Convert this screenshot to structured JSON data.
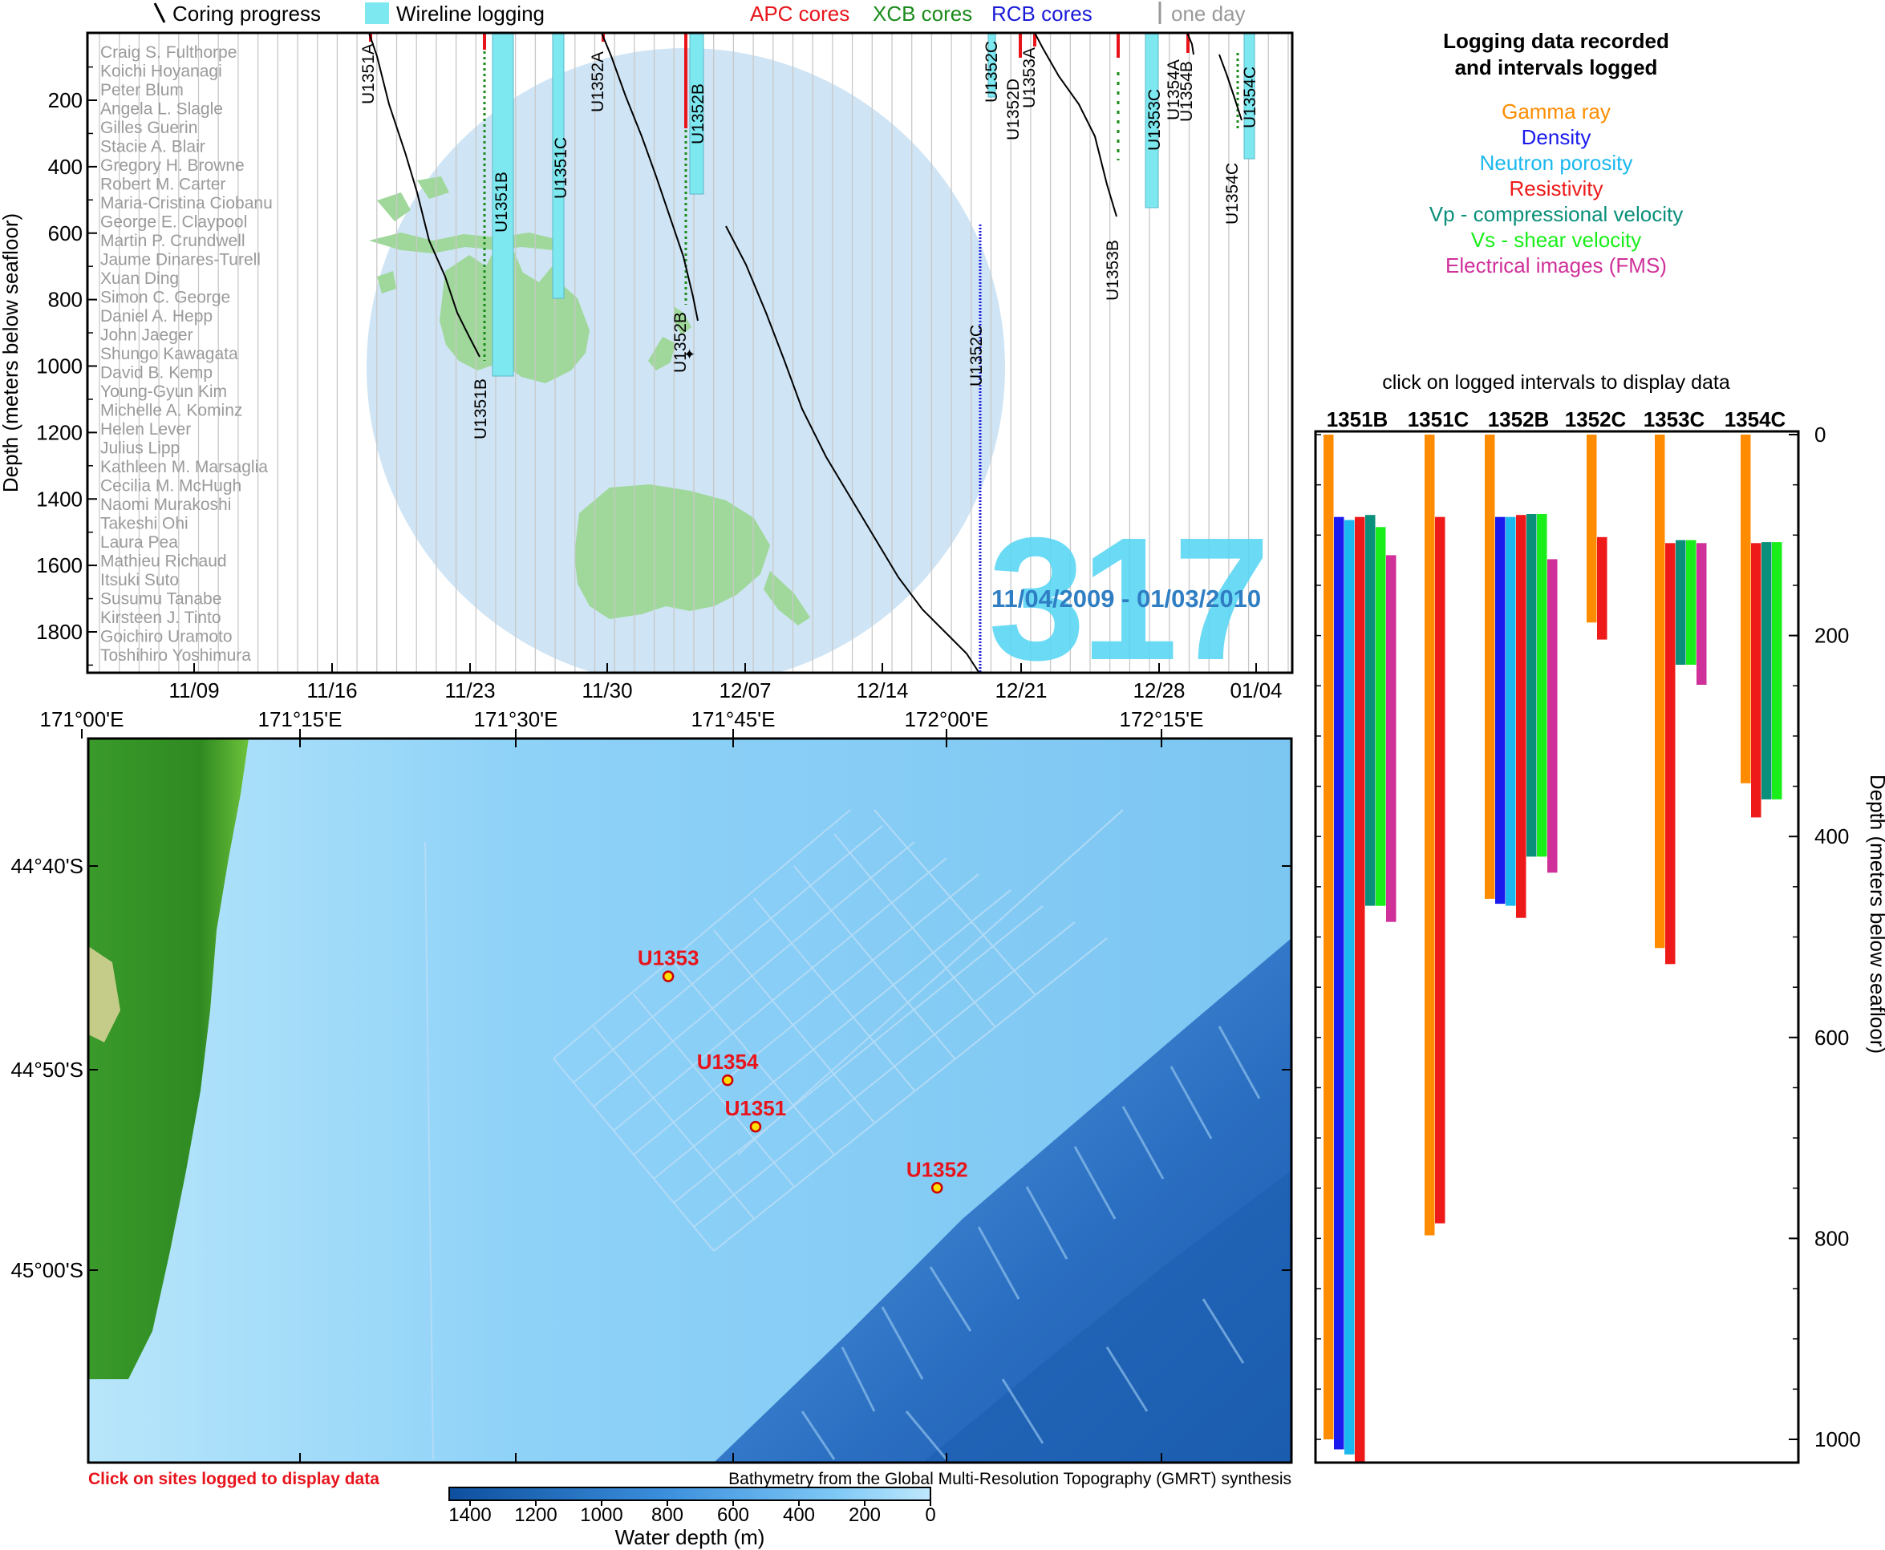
{
  "legend": {
    "coring_progress": "Coring progress",
    "wireline_logging": "Wireline logging",
    "apc": "APC cores",
    "xcb": "XCB cores",
    "rcb": "RCB cores",
    "one_day": "one day",
    "colors": {
      "apc": "#e8141c",
      "xcb": "#1a8a1a",
      "rcb": "#1a1ad8",
      "wireline": "#7ee8f0",
      "one_day": "#999999"
    }
  },
  "expedition": {
    "number": "317",
    "dates": "11/04/2009 - 01/03/2010",
    "number_color": "#5ad6f4",
    "dates_color": "#2f7ec4"
  },
  "timeline": {
    "ylabel": "Depth (meters below seafloor)",
    "yticks": [
      200,
      400,
      600,
      800,
      1000,
      1200,
      1400,
      1600,
      1800
    ],
    "xticks": [
      "11/09",
      "11/16",
      "11/23",
      "11/30",
      "12/07",
      "12/14",
      "12/21",
      "12/28",
      "01/04"
    ],
    "scientists": [
      "Craig S. Fulthorpe",
      "Koichi Hoyanagi",
      "Peter Blum",
      "Angela L. Slagle",
      "Gilles Guerin",
      "Stacie A. Blair",
      "Gregory H. Browne",
      "Robert M. Carter",
      "Maria-Cristina Ciobanu",
      "George E. Claypool",
      "Martin P. Crundwell",
      "Jaume Dinares-Turell",
      "Xuan Ding",
      "Simon C. George",
      "Daniel A. Hepp",
      "John Jaeger",
      "Shungo Kawagata",
      "David B. Kemp",
      "Young-Gyun Kim",
      "Michelle A. Kominz",
      "Helen Lever",
      "Julius Lipp",
      "Kathleen M. Marsaglia",
      "Cecilia M. McHugh",
      "Naomi Murakoshi",
      "Takeshi Ohi",
      "Laura Pea",
      "Mathieu Richaud",
      "Itsuki Suto",
      "Susumu Tanabe",
      "Kirsteen J. Tinto",
      "Goichiro Uramoto",
      "Toshihiro Yoshimura"
    ],
    "hole_labels": {
      "top": [
        "U1351A",
        "U1351B",
        "U1351C",
        "U1352A",
        "U1352B",
        "U1352C",
        "U1352D",
        "U1353A",
        "U1353C",
        "U1354A",
        "U1354B",
        "U1354C"
      ],
      "bottom": [
        "U1351B",
        "U1352B",
        "U1352C",
        "U1353B",
        "U1354C"
      ]
    }
  },
  "map": {
    "lon_ticks": [
      "171°00'E",
      "171°15'E",
      "171°30'E",
      "171°45'E",
      "172°00'E",
      "172°15'E"
    ],
    "lat_ticks": [
      "44°40'S",
      "44°50'S",
      "45°00'S"
    ],
    "sites": [
      {
        "name": "U1353",
        "lon": 171.672,
        "lat": -44.757
      },
      {
        "name": "U1354",
        "lon": 171.74,
        "lat": -44.842
      },
      {
        "name": "U1351",
        "lon": 171.772,
        "lat": -44.88
      },
      {
        "name": "U1352",
        "lon": 171.98,
        "lat": -44.93
      }
    ],
    "click_note": "Click on sites logged to display data",
    "credit": "Bathymetry from the Global Multi-Resolution Topography (GMRT) synthesis",
    "colorbar": {
      "ticks": [
        "1400",
        "1200",
        "1000",
        "800",
        "600",
        "400",
        "200",
        "0"
      ],
      "label": "Water depth (m)"
    }
  },
  "logging": {
    "title_line1": "Logging data recorded",
    "title_line2": "and intervals logged",
    "types": [
      {
        "label": "Gamma ray",
        "color": "#ff8c00"
      },
      {
        "label": "Density",
        "color": "#1a1aee"
      },
      {
        "label": "Neutron porosity",
        "color": "#1ab8ee"
      },
      {
        "label": "Resistivity",
        "color": "#ee1a1a"
      },
      {
        "label": "Vp - compressional velocity",
        "color": "#0a8f7a"
      },
      {
        "label": "Vs - shear velocity",
        "color": "#1aee1a"
      },
      {
        "label": "Electrical images (FMS)",
        "color": "#d0309a"
      }
    ],
    "instruction": "click on logged intervals to display data",
    "ylabel": "Depth (meters below seafloor)",
    "yticks": [
      0,
      200,
      400,
      600,
      800,
      1000
    ]
  },
  "chart_data": {
    "type": "bar",
    "title": "Logging data recorded and intervals logged",
    "ylabel": "Depth (meters below seafloor)",
    "ylim": [
      0,
      1025
    ],
    "categories": [
      "1351B",
      "1351C",
      "1352B",
      "1352C",
      "1353C",
      "1354C"
    ],
    "series": [
      {
        "name": "Gamma ray",
        "intervals": [
          [
            0,
            1000
          ],
          [
            0,
            797
          ],
          [
            0,
            462
          ],
          [
            0,
            187
          ],
          [
            0,
            511
          ],
          [
            0,
            347
          ]
        ]
      },
      {
        "name": "Density",
        "intervals": [
          [
            82,
            1010
          ],
          null,
          [
            82,
            467
          ],
          null,
          null,
          null
        ]
      },
      {
        "name": "Neutron porosity",
        "intervals": [
          [
            85,
            1015
          ],
          null,
          [
            82,
            469
          ],
          null,
          null,
          null
        ]
      },
      {
        "name": "Resistivity",
        "intervals": [
          [
            82,
            1025
          ],
          [
            82,
            785
          ],
          [
            80,
            481
          ],
          [
            102,
            204
          ],
          [
            108,
            527
          ],
          [
            108,
            381
          ]
        ]
      },
      {
        "name": "Vp - compressional velocity",
        "intervals": [
          [
            80,
            469
          ],
          null,
          [
            79,
            420
          ],
          null,
          [
            105,
            229
          ],
          [
            107,
            363
          ]
        ]
      },
      {
        "name": "Vs - shear velocity",
        "intervals": [
          [
            92,
            469
          ],
          null,
          [
            79,
            420
          ],
          null,
          [
            105,
            229
          ],
          [
            107,
            363
          ]
        ]
      },
      {
        "name": "Electrical images (FMS)",
        "intervals": [
          [
            120,
            485
          ],
          null,
          [
            124,
            436
          ],
          null,
          [
            108,
            249
          ],
          null
        ]
      }
    ]
  }
}
